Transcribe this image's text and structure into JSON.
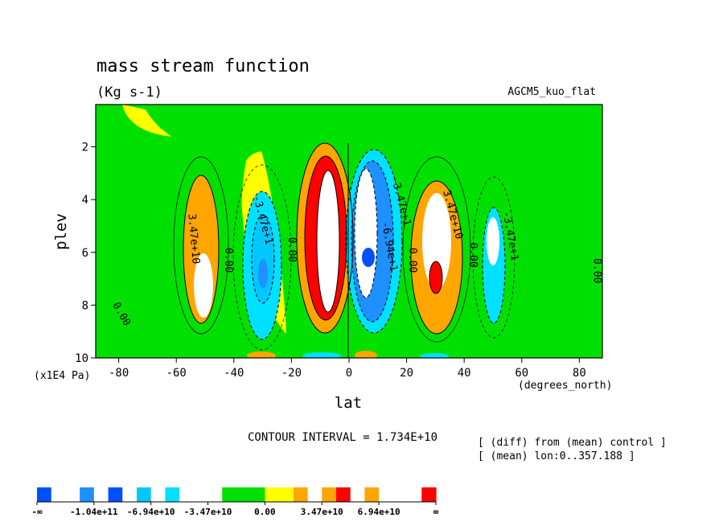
{
  "chart_data": {
    "type": "heatmap",
    "title": "mass stream function",
    "units": "(Kg s-1)",
    "run_label": "AGCM5_kuo_flat",
    "xlabel": "lat",
    "x_units": "(degrees_north)",
    "ylabel": "plev",
    "y_units": "(x1E4 Pa)",
    "xlim": [
      -88,
      88
    ],
    "ylim": [
      0.4,
      10
    ],
    "y_inverted": true,
    "x_ticks": [
      -80,
      -60,
      -40,
      -20,
      0,
      20,
      40,
      60,
      80
    ],
    "y_ticks": [
      2,
      4,
      6,
      8,
      10
    ],
    "contour_interval_text": "CONTOUR INTERVAL = 1.734E+10",
    "info_lines": [
      "[ (diff) from (mean) control ]",
      "[ (mean) lon:0..357.188 ]"
    ],
    "contour_labels": [
      {
        "text": "3.47e+10",
        "lat": -55,
        "plev": 5.5,
        "angle": 85
      },
      {
        "text": "0.00",
        "lat": -43,
        "plev": 6.3,
        "angle": 90
      },
      {
        "text": "-3.47e+1",
        "lat": -31,
        "plev": 4.8,
        "angle": 75
      },
      {
        "text": "0.00",
        "lat": -21,
        "plev": 5.9,
        "angle": 90
      },
      {
        "text": "0.00",
        "lat": -80,
        "plev": 8.4,
        "angle": 60
      },
      {
        "text": "-3.47e+1",
        "lat": 17,
        "plev": 4.1,
        "angle": 75
      },
      {
        "text": "-6.94e+1",
        "lat": 13,
        "plev": 5.8,
        "angle": 80
      },
      {
        "text": "0.00",
        "lat": 21,
        "plev": 6.3,
        "angle": 90
      },
      {
        "text": "3.47e+10",
        "lat": 35,
        "plev": 4.6,
        "angle": 75
      },
      {
        "text": "0.00",
        "lat": 42,
        "plev": 6.1,
        "angle": 90
      },
      {
        "text": "-3.47e+1",
        "lat": 55,
        "plev": 5.4,
        "angle": 80
      },
      {
        "text": "0.00",
        "lat": 85,
        "plev": 6.7,
        "angle": 90
      }
    ],
    "cells": [
      {
        "lat": -73,
        "plev": 5.5,
        "value": 0.3
      },
      {
        "lat": -51,
        "plev": 5.8,
        "value": 0.8
      },
      {
        "lat": -30,
        "plev": 6.0,
        "value": -0.9
      },
      {
        "lat": -7,
        "plev": 5.6,
        "value": 1.9
      },
      {
        "lat": 8,
        "plev": 5.6,
        "value": -1.9
      },
      {
        "lat": 31,
        "plev": 6.1,
        "value": 1.3
      },
      {
        "lat": 51,
        "plev": 6.3,
        "value": -0.8
      },
      {
        "lat": 75,
        "plev": 5.5,
        "value": 0.3
      }
    ],
    "colorbar": {
      "labels": [
        "-∞",
        "-1.04e+11",
        "-6.94e+10",
        "-3.47e+10",
        "0.00",
        "3.47e+10",
        "6.94e+10",
        "∞"
      ],
      "colors": [
        "#0050ff",
        "#ffffff",
        "#ffffff",
        "#1e90ff",
        "#ffffff",
        "#0050ff",
        "#ffffff",
        "#00c8ff",
        "#ffffff",
        "#00e0ff",
        "#ffffff",
        "#ffffff",
        "#ffffff",
        "#00e000",
        "#00e000",
        "#00e000",
        "#ffff00",
        "#ffff00",
        "#ffa500",
        "#ffffff",
        "#ffa500",
        "#ff0000",
        "#ffffff",
        "#ffa500",
        "#ffffff",
        "#ffffff",
        "#ffffff",
        "#ff0000"
      ]
    }
  }
}
